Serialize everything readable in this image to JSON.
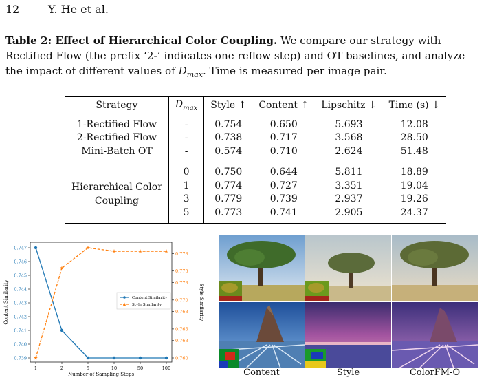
{
  "header": {
    "page_number": "12",
    "authors": "Y. He et al."
  },
  "caption": {
    "label": "Table 2: Effect of Hierarchical Color Coupling.",
    "text_before_symbol": "We compare our strategy with Rectified Flow (the prefix ‘2-’ indicates one reflow step) and OT baselines, and analyze the impact of different values of ",
    "symbol": "D",
    "symbol_sub": "max",
    "text_after_symbol": ". Time is measured per image pair."
  },
  "table": {
    "headers": {
      "strategy": "Strategy",
      "dmax": "D",
      "dmax_sub": "max",
      "style": "Style ↑",
      "content": "Content ↑",
      "lipschitz": "Lipschitz ↓",
      "time": "Time (s) ↓"
    },
    "baselines": [
      {
        "strategy": "1-Rectified Flow",
        "dmax": "-",
        "style": "0.754",
        "content": "0.650",
        "lipschitz": "5.693",
        "time": "12.08"
      },
      {
        "strategy": "2-Rectified Flow",
        "dmax": "-",
        "style": "0.738",
        "content": "0.717",
        "lipschitz": "3.568",
        "time": "28.50"
      },
      {
        "strategy": "Mini-Batch OT",
        "dmax": "-",
        "style": "0.574",
        "content": "0.710",
        "lipschitz": "2.624",
        "time": "51.48"
      }
    ],
    "hcc_label_line1": "Hierarchical Color",
    "hcc_label_line2": "Coupling",
    "hcc_rows": [
      {
        "dmax": "0",
        "style": "0.750",
        "content": "0.644",
        "lipschitz": "5.811",
        "time": "18.89"
      },
      {
        "dmax": "1",
        "style": "0.774",
        "content": "0.727",
        "lipschitz": "3.351",
        "time": "19.04"
      },
      {
        "dmax": "3",
        "style": "0.779",
        "content": "0.739",
        "lipschitz": "2.937",
        "time": "19.26"
      },
      {
        "dmax": "5",
        "style": "0.773",
        "content": "0.741",
        "lipschitz": "2.905",
        "time": "24.37"
      }
    ]
  },
  "chart_data": {
    "type": "line",
    "x": [
      "1",
      "2",
      "5",
      "10",
      "50",
      "100"
    ],
    "xlabel": "Number of Sampling Steps",
    "ylabel": "Content Similarity",
    "y2label": "Style Similarity",
    "ylim": [
      0.739,
      0.747
    ],
    "y2lim": [
      0.76,
      0.779
    ],
    "yticks": [
      "0.739",
      "0.740",
      "0.741",
      "0.742",
      "0.743",
      "0.744",
      "0.745",
      "0.746",
      "0.747"
    ],
    "y2ticks": [
      "0.760",
      "0.763",
      "0.765",
      "0.768",
      "0.770",
      "0.773",
      "0.775",
      "0.778"
    ],
    "series": [
      {
        "name": "Content Similarity",
        "axis": "left",
        "color": "#1f77b4",
        "values": [
          0.747,
          0.741,
          0.739,
          0.739,
          0.739,
          0.739
        ]
      },
      {
        "name": "Style Similarity",
        "axis": "right",
        "color": "#ff7f0e",
        "values": [
          0.76,
          0.7755,
          0.779,
          0.7784,
          0.7784,
          0.7784
        ]
      }
    ],
    "legend": "center-right",
    "grid": false
  },
  "figure": {
    "columns": [
      "Content",
      "Style",
      "ColorFM-O"
    ]
  }
}
